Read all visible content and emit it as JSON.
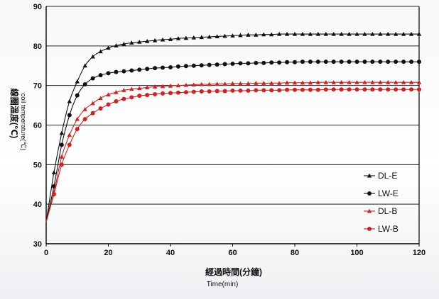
{
  "chart_data": {
    "type": "line",
    "xlabel": "經過時間(分鐘)",
    "xlabel_en": "Time(min)",
    "ylabel": "線圈溫度(℃)",
    "ylabel_en": "coil temperature(℃)",
    "xlim": [
      0,
      120
    ],
    "ylim": [
      30,
      90
    ],
    "xticks": [
      "0",
      "20",
      "40",
      "60",
      "80",
      "100",
      "120"
    ],
    "yticks": [
      "30",
      "40",
      "50",
      "60",
      "70",
      "80",
      "90"
    ],
    "grid": "horizontal",
    "legend_position": "right",
    "x": [
      0,
      2.5,
      5,
      7.5,
      10,
      12.5,
      15,
      17.5,
      20,
      22.5,
      25,
      27.5,
      30,
      32.5,
      35,
      37.5,
      40,
      42.5,
      45,
      47.5,
      50,
      52.5,
      55,
      57.5,
      60,
      62.5,
      65,
      67.5,
      70,
      72.5,
      75,
      77.5,
      80,
      82.5,
      85,
      87.5,
      90,
      92.5,
      95,
      97.5,
      100,
      102.5,
      105,
      107.5,
      110,
      112.5,
      115,
      117.5,
      120
    ],
    "series": [
      {
        "name": "DL-E",
        "marker": "triangle",
        "color": "#111111",
        "values": [
          35.5,
          48,
          58,
          66,
          71,
          75,
          77.3,
          78.6,
          79.5,
          80.1,
          80.5,
          80.8,
          81.0,
          81.2,
          81.4,
          81.6,
          81.7,
          81.9,
          82.0,
          82.1,
          82.2,
          82.3,
          82.4,
          82.5,
          82.6,
          82.7,
          82.8,
          82.8,
          82.9,
          82.9,
          83.0,
          83.0,
          83.0,
          83.0,
          83.0,
          83.0,
          83.0,
          83.0,
          83.0,
          83.0,
          83.0,
          83.0,
          83.0,
          83.0,
          83.0,
          83.0,
          83.0,
          83.0,
          83.0
        ]
      },
      {
        "name": "LW-E",
        "marker": "circle",
        "color": "#111111",
        "values": [
          35.5,
          44.5,
          55,
          62.5,
          67.5,
          70.3,
          71.8,
          72.6,
          73.1,
          73.4,
          73.6,
          73.8,
          74.0,
          74.2,
          74.4,
          74.5,
          74.6,
          74.8,
          74.9,
          75.0,
          75.1,
          75.2,
          75.3,
          75.4,
          75.5,
          75.6,
          75.6,
          75.7,
          75.7,
          75.8,
          75.8,
          75.9,
          75.9,
          76.0,
          76.0,
          76.0,
          76.0,
          76.0,
          76.0,
          76.0,
          76.0,
          76.0,
          76.0,
          76.0,
          76.0,
          76.0,
          76.0,
          76.0,
          76.0
        ]
      },
      {
        "name": "DL-B",
        "marker": "triangle",
        "color": "#d42020",
        "values": [
          35.5,
          43,
          52,
          57.5,
          61.5,
          64,
          65.5,
          66.8,
          67.7,
          68.3,
          68.8,
          69.1,
          69.3,
          69.5,
          69.7,
          69.8,
          69.9,
          70.0,
          70.1,
          70.2,
          70.3,
          70.3,
          70.4,
          70.4,
          70.5,
          70.5,
          70.5,
          70.6,
          70.6,
          70.6,
          70.6,
          70.7,
          70.7,
          70.7,
          70.7,
          70.8,
          70.8,
          70.8,
          70.8,
          70.8,
          70.8,
          70.8,
          70.8,
          70.8,
          70.8,
          70.8,
          70.8,
          70.8,
          70.8
        ]
      },
      {
        "name": "LW-B",
        "marker": "circle",
        "color": "#d42020",
        "values": [
          35.5,
          42.5,
          50,
          55,
          59,
          61.5,
          63,
          64.2,
          65.2,
          66.0,
          66.6,
          67.0,
          67.4,
          67.6,
          67.8,
          68.0,
          68.1,
          68.2,
          68.3,
          68.4,
          68.5,
          68.5,
          68.6,
          68.6,
          68.7,
          68.7,
          68.7,
          68.8,
          68.8,
          68.8,
          68.8,
          68.9,
          68.9,
          68.9,
          68.9,
          68.9,
          69.0,
          69.0,
          69.0,
          69.0,
          69.0,
          69.0,
          69.0,
          69.0,
          69.0,
          69.0,
          69.0,
          69.0,
          69.0
        ]
      }
    ]
  }
}
